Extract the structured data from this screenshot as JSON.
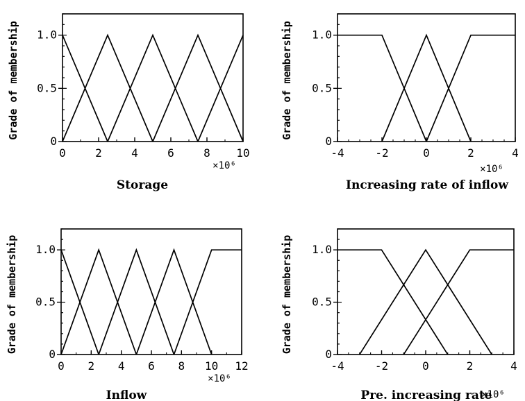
{
  "chart_data": [
    {
      "type": "line",
      "xlabel": "Storage",
      "ylabel": "Grade of membership",
      "x_multiplier": "×10⁶",
      "xlim": [
        0,
        10
      ],
      "ylim": [
        0,
        1.2
      ],
      "xticks": [
        "0",
        "2",
        "4",
        "6",
        "8",
        "10"
      ],
      "xtick_values": [
        0,
        2,
        4,
        6,
        8,
        10
      ],
      "yticks": [
        "0",
        "0.5",
        "1.0"
      ],
      "ytick_values": [
        0,
        0.5,
        1.0
      ],
      "series": [
        {
          "x": [
            0,
            2.5
          ],
          "y": [
            1,
            0
          ]
        },
        {
          "x": [
            0,
            2.5,
            5
          ],
          "y": [
            0,
            1,
            0
          ]
        },
        {
          "x": [
            2.5,
            5,
            7.5
          ],
          "y": [
            0,
            1,
            0
          ]
        },
        {
          "x": [
            5,
            7.5,
            10
          ],
          "y": [
            0,
            1,
            0
          ]
        },
        {
          "x": [
            7.5,
            10
          ],
          "y": [
            0,
            1
          ]
        }
      ]
    },
    {
      "type": "line",
      "xlabel": "Increasing rate of inflow",
      "ylabel": "Grade of membership",
      "x_multiplier": "×10⁶",
      "xlim": [
        -4,
        4
      ],
      "ylim": [
        0,
        1.2
      ],
      "xticks": [
        "-4",
        "-2",
        "0",
        "2",
        "4"
      ],
      "xtick_values": [
        -4,
        -2,
        0,
        2,
        4
      ],
      "yticks": [
        "0",
        "0.5",
        "1.0"
      ],
      "ytick_values": [
        0,
        0.5,
        1.0
      ],
      "series": [
        {
          "x": [
            -4,
            -2,
            0
          ],
          "y": [
            1,
            1,
            0
          ]
        },
        {
          "x": [
            -2,
            0,
            2
          ],
          "y": [
            0,
            1,
            0
          ]
        },
        {
          "x": [
            0,
            2,
            4
          ],
          "y": [
            0,
            1,
            1
          ]
        }
      ]
    },
    {
      "type": "line",
      "xlabel": "Inflow",
      "ylabel": "Grade of membership",
      "x_multiplier": "×10⁶",
      "xlim": [
        0,
        12
      ],
      "ylim": [
        0,
        1.2
      ],
      "xticks": [
        "0",
        "2",
        "4",
        "6",
        "8",
        "10",
        "12"
      ],
      "xtick_values": [
        0,
        2,
        4,
        6,
        8,
        10,
        12
      ],
      "yticks": [
        "0",
        "0.5",
        "1.0"
      ],
      "ytick_values": [
        0,
        0.5,
        1.0
      ],
      "series": [
        {
          "x": [
            0,
            2.5
          ],
          "y": [
            1,
            0
          ]
        },
        {
          "x": [
            0,
            2.5,
            5
          ],
          "y": [
            0,
            1,
            0
          ]
        },
        {
          "x": [
            2.5,
            5,
            7.5
          ],
          "y": [
            0,
            1,
            0
          ]
        },
        {
          "x": [
            5,
            7.5,
            10
          ],
          "y": [
            0,
            1,
            0
          ]
        },
        {
          "x": [
            7.5,
            10,
            12
          ],
          "y": [
            0,
            1,
            1
          ]
        }
      ]
    },
    {
      "type": "line",
      "xlabel": "Pre. increasing rate",
      "ylabel": "Grade of membership",
      "x_multiplier": "×10⁶",
      "xlim": [
        -4,
        4
      ],
      "ylim": [
        0,
        1.2
      ],
      "xticks": [
        "-4",
        "-2",
        "0",
        "2",
        "4"
      ],
      "xtick_values": [
        -4,
        -2,
        0,
        2,
        4
      ],
      "yticks": [
        "0",
        "0.5",
        "1.0"
      ],
      "ytick_values": [
        0,
        0.5,
        1.0
      ],
      "series": [
        {
          "x": [
            -4,
            -2,
            1
          ],
          "y": [
            1,
            1,
            0
          ]
        },
        {
          "x": [
            -3,
            0,
            3
          ],
          "y": [
            0,
            1,
            0
          ]
        },
        {
          "x": [
            -1,
            2,
            4
          ],
          "y": [
            0,
            1,
            1
          ]
        }
      ]
    }
  ]
}
